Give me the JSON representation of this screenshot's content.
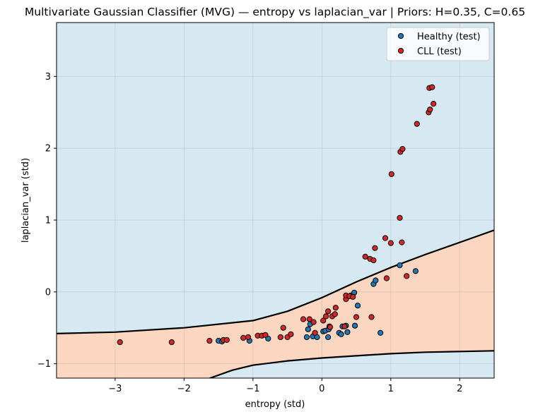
{
  "chart_data": {
    "type": "scatter",
    "title": "Multivariate Gaussian Classifier (MVG) — entropy vs laplacian_var | Priors: H=0.35, C=0.65",
    "xlabel": "entropy (std)",
    "ylabel": "laplacian_var (std)",
    "xlim": [
      -3.85,
      2.5
    ],
    "ylim": [
      -1.2,
      3.75
    ],
    "xticks": [
      -3,
      -2,
      -1,
      0,
      1,
      2
    ],
    "yticks": [
      -1,
      0,
      1,
      2,
      3
    ],
    "xtick_labels": [
      "−3",
      "−2",
      "−1",
      "0",
      "1",
      "2"
    ],
    "ytick_labels": [
      "−1",
      "0",
      "1",
      "2",
      "3"
    ],
    "grid": true,
    "legend_position": "top-right",
    "regions": [
      {
        "label": "Healthy",
        "color": "#d6e8f2"
      },
      {
        "label": "CLL",
        "color": "#fbd6c1"
      }
    ],
    "decision_boundary": {
      "color": "#000000",
      "upper": {
        "x": [
          -3.85,
          -3,
          -2,
          -1,
          -0.5,
          0,
          0.5,
          1,
          1.5,
          2,
          2.5
        ],
        "y": [
          -0.58,
          -0.56,
          -0.5,
          -0.4,
          -0.27,
          -0.08,
          0.14,
          0.34,
          0.52,
          0.69,
          0.86
        ]
      },
      "lower": {
        "x": [
          -1.65,
          -1.3,
          -1,
          -0.5,
          0,
          0.5,
          1,
          1.5,
          2,
          2.5
        ],
        "y": [
          -1.21,
          -1.09,
          -1.02,
          -0.96,
          -0.92,
          -0.89,
          -0.86,
          -0.84,
          -0.83,
          -0.82
        ]
      }
    },
    "series": [
      {
        "name": "Healthy (test)",
        "color": "#1f77b4",
        "x": [
          -1.5,
          -1.45,
          -1.05,
          -0.78,
          -0.22,
          -0.2,
          -0.17,
          -0.13,
          -0.07,
          0.02,
          0.05,
          0.09,
          0.1,
          0.11,
          0.25,
          0.28,
          0.3,
          0.35,
          0.37,
          0.42,
          0.47,
          0.48,
          0.52,
          0.75,
          0.78,
          0.85,
          1.13,
          1.36
        ],
        "y": [
          -0.68,
          -0.69,
          -0.68,
          -0.65,
          -0.63,
          -0.52,
          -0.45,
          -0.62,
          -0.63,
          -0.55,
          -0.54,
          -0.63,
          -0.52,
          -0.48,
          -0.57,
          -0.59,
          -0.48,
          -0.47,
          -0.56,
          -0.05,
          -0.01,
          -0.47,
          -0.19,
          0.11,
          0.16,
          -0.57,
          0.37,
          0.29
        ]
      },
      {
        "name": "CLL (test)",
        "color": "#d62728",
        "x": [
          -2.93,
          -2.18,
          -1.63,
          -1.43,
          -1.38,
          -1.14,
          -1.07,
          -0.93,
          -0.87,
          -0.82,
          -0.6,
          -0.56,
          -0.5,
          -0.45,
          -0.27,
          -0.18,
          -0.12,
          -0.1,
          0.02,
          0.06,
          0.09,
          0.12,
          0.15,
          0.19,
          0.2,
          0.33,
          0.35,
          0.35,
          0.4,
          0.45,
          0.5,
          0.63,
          0.7,
          0.72,
          0.75,
          0.77,
          0.92,
          0.94,
          1.0,
          1.01,
          1.13,
          1.14,
          1.16,
          1.17,
          1.23,
          1.38,
          1.55,
          1.56,
          1.57,
          1.6,
          1.62
        ],
        "y": [
          -0.7,
          -0.7,
          -0.68,
          -0.67,
          -0.67,
          -0.64,
          -0.63,
          -0.61,
          -0.61,
          -0.6,
          -0.63,
          -0.5,
          -0.63,
          -0.59,
          -0.38,
          -0.38,
          -0.42,
          -0.57,
          -0.4,
          -0.34,
          -0.27,
          -0.49,
          -0.34,
          -0.31,
          -0.22,
          -0.48,
          -0.1,
          -0.05,
          -0.06,
          -0.07,
          -0.35,
          0.49,
          0.46,
          -0.35,
          0.44,
          0.61,
          0.75,
          0.19,
          0.68,
          1.64,
          1.03,
          1.95,
          0.69,
          1.99,
          0.22,
          2.34,
          2.5,
          2.84,
          2.54,
          2.85,
          2.62
        ]
      }
    ]
  }
}
